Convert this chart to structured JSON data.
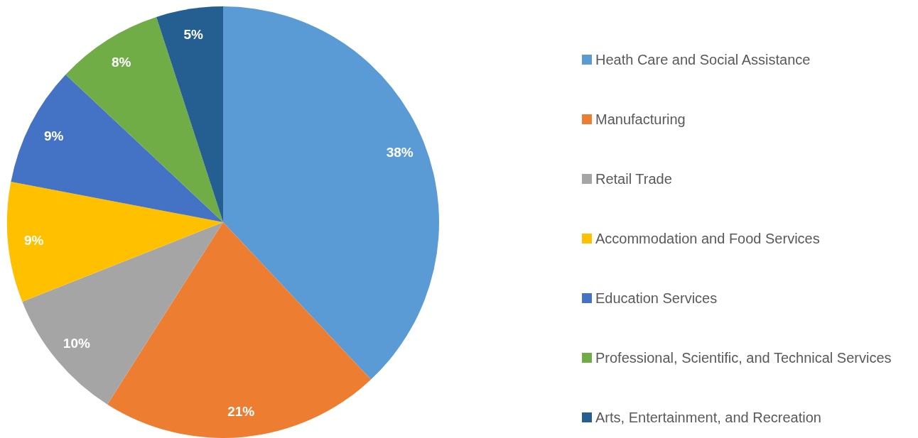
{
  "chart_data": {
    "type": "pie",
    "categories": [
      "Heath Care and Social Assistance",
      "Manufacturing",
      "Retail Trade",
      "Accommodation and Food Services",
      "Education Services",
      "Professional, Scientific, and Technical Services",
      "Arts, Entertainment, and Recreation"
    ],
    "values": [
      38,
      21,
      10,
      9,
      9,
      8,
      5
    ],
    "colors": [
      "#5b9bd5",
      "#ed7d31",
      "#a5a5a5",
      "#ffc000",
      "#4472c4",
      "#70ad47",
      "#255e91"
    ],
    "value_labels": [
      "38%",
      "21%",
      "10%",
      "9%",
      "9%",
      "8%",
      "5%"
    ],
    "legend": "right"
  }
}
